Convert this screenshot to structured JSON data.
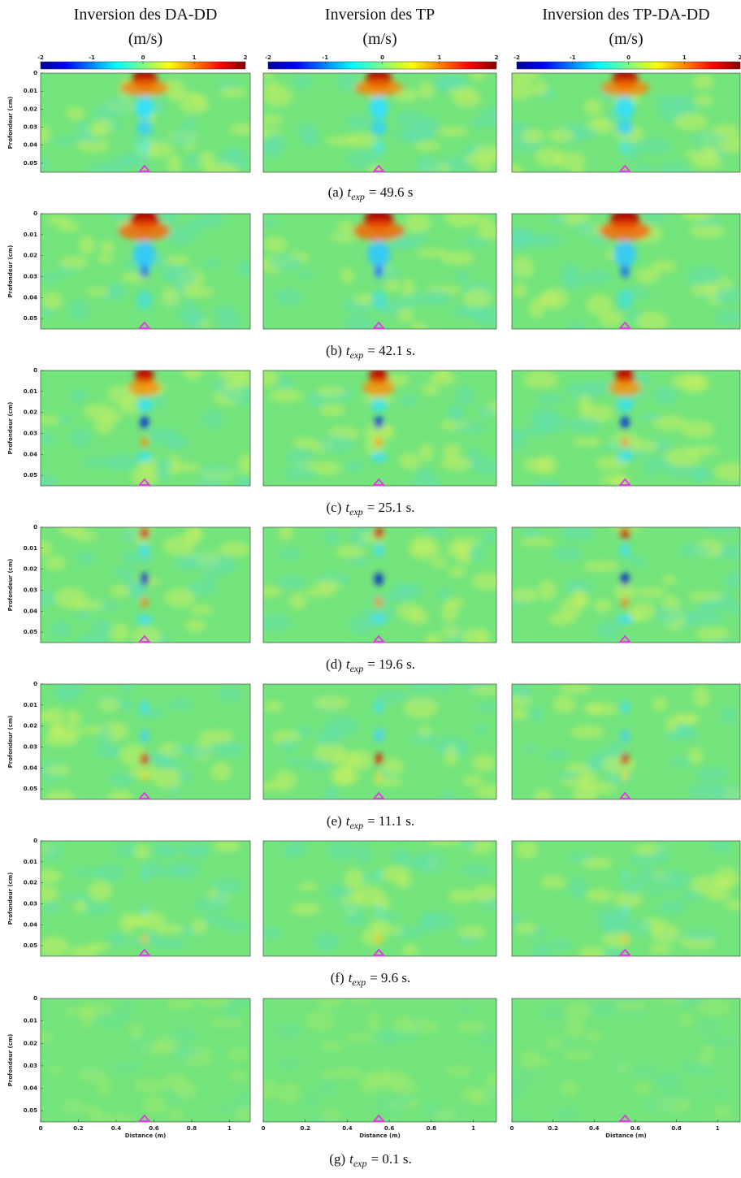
{
  "columns": [
    {
      "title": "Inversion des DA-DD",
      "unit": "(m/s)"
    },
    {
      "title": "Inversion des TP",
      "unit": "(m/s)"
    },
    {
      "title": "Inversion des TP-DA-DD",
      "unit": "(m/s)"
    }
  ],
  "colorbar": {
    "lim": [
      -2,
      2
    ],
    "ticks": [
      -2,
      -1,
      0,
      1,
      2
    ]
  },
  "y_axis": {
    "label": "Profondeur (cm)",
    "lim": [
      0,
      0.055
    ],
    "ticks": [
      0,
      0.01,
      0.02,
      0.03,
      0.04,
      0.05
    ]
  },
  "x_axis": {
    "label": "Distance (m)",
    "lim": [
      0,
      1.11
    ],
    "ticks": [
      0,
      0.2,
      0.4,
      0.6,
      0.8,
      1
    ]
  },
  "rows": [
    {
      "label": "(a)",
      "symbol": "t",
      "subscript": "exp",
      "rest": "= 49.6 s"
    },
    {
      "label": "(b)",
      "symbol": "t",
      "subscript": "exp",
      "rest": "= 42.1 s."
    },
    {
      "label": "(c)",
      "symbol": "t",
      "subscript": "exp",
      "rest": "= 25.1 s."
    },
    {
      "label": "(d)",
      "symbol": "t",
      "subscript": "exp",
      "rest": "= 19.6 s."
    },
    {
      "label": "(e)",
      "symbol": "t",
      "subscript": "exp",
      "rest": "= 11.1 s."
    },
    {
      "label": "(f)",
      "symbol": "t",
      "subscript": "exp",
      "rest": "= 9.6 s."
    },
    {
      "label": "(g)",
      "symbol": "t",
      "subscript": "exp",
      "rest": "= 0.1 s."
    }
  ]
}
